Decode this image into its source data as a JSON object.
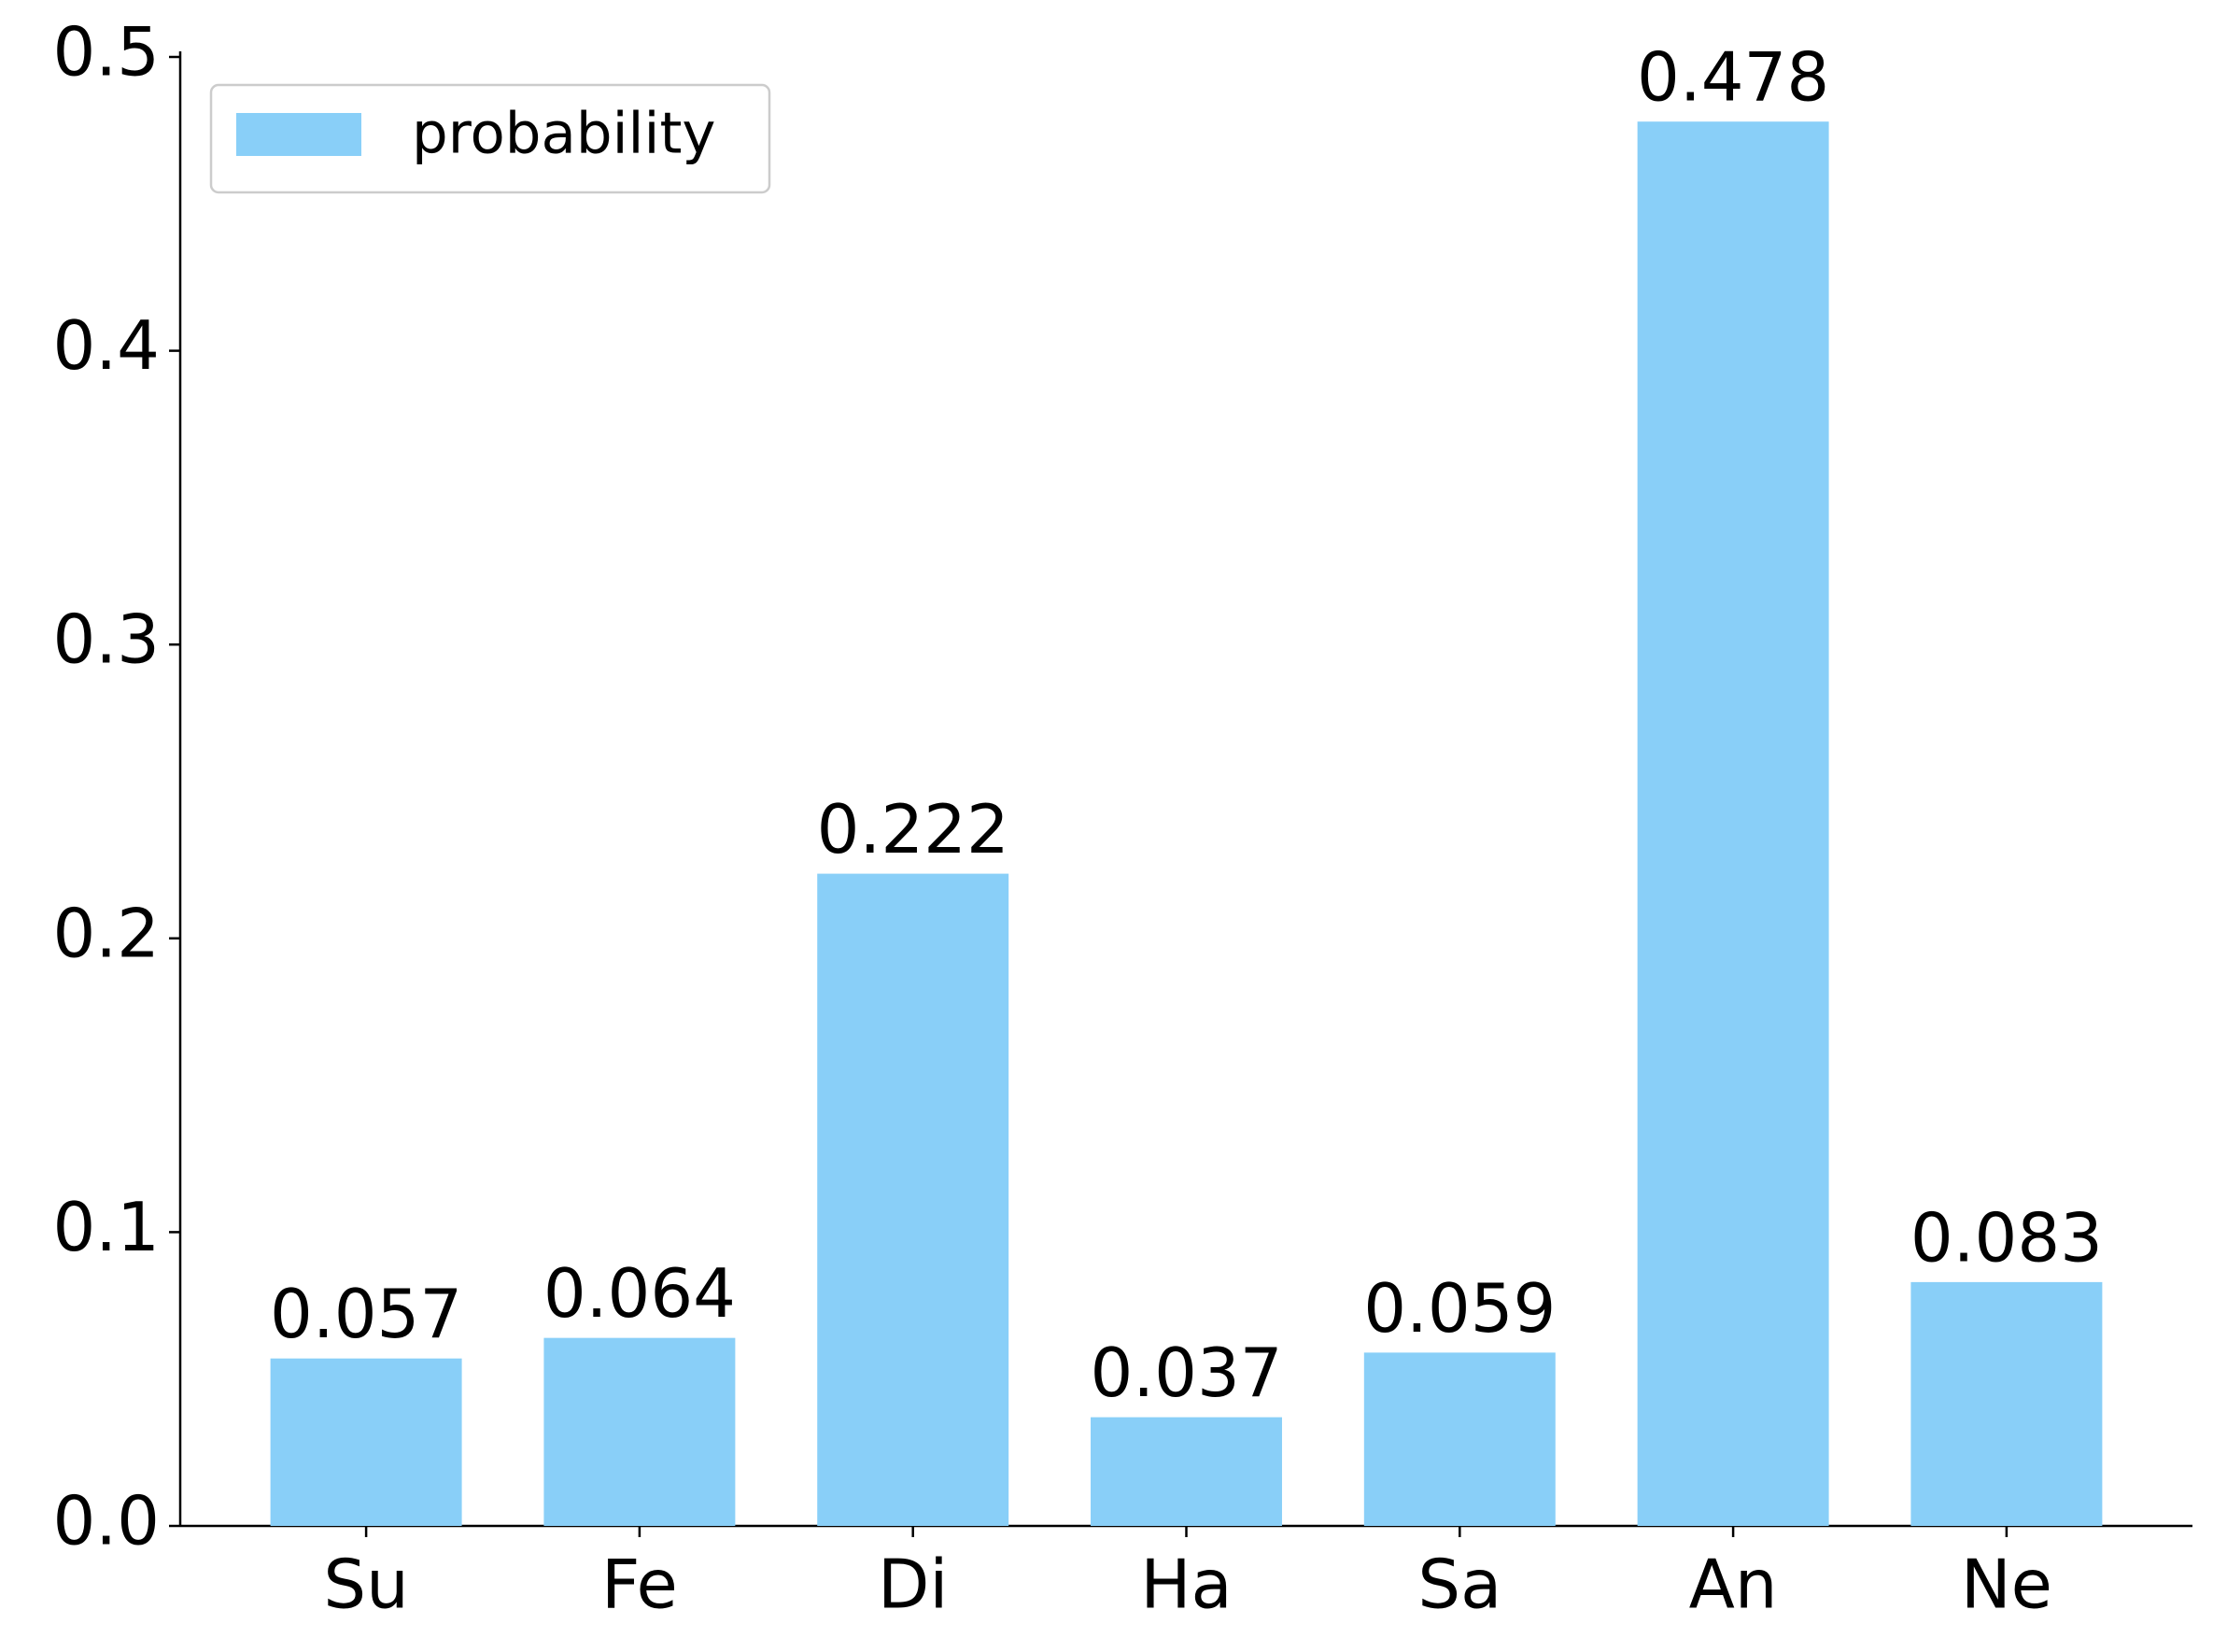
{
  "chart_data": {
    "type": "bar",
    "categories": [
      "Su",
      "Fe",
      "Di",
      "Ha",
      "Sa",
      "An",
      "Ne"
    ],
    "series": [
      {
        "name": "probability",
        "color": "#89cff8",
        "values": [
          0.057,
          0.064,
          0.222,
          0.037,
          0.059,
          0.478,
          0.083
        ]
      }
    ],
    "ylim": [
      0,
      0.5
    ],
    "yticks": [
      {
        "value": 0,
        "label": "0.0"
      },
      0.1,
      0.2,
      0.3,
      0.4,
      0.5
    ],
    "grid": false,
    "legend": "upper left",
    "show_value_labels": true
  }
}
